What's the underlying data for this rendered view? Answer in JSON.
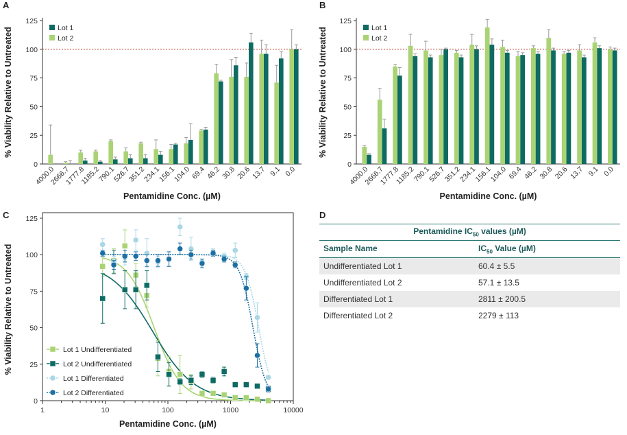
{
  "colors": {
    "lot1": "#0e6b63",
    "lot2": "#a9d374",
    "diff1": "#a9d7e6",
    "diff2": "#1c6fa3",
    "ref": "#c0392b",
    "err": "#999999",
    "axis": "#333333"
  },
  "panel_labels": [
    "A",
    "B",
    "C",
    "D"
  ],
  "chart_data": [
    {
      "type": "bar",
      "panel": "A",
      "ylabel": "% Viability Relative to Untreated",
      "xlabel": "Pentamidine Conc. (µM)",
      "ylim": [
        0,
        125
      ],
      "yticks": [
        0,
        25,
        50,
        75,
        100,
        125
      ],
      "reference_line": 100,
      "categories": [
        "4000.0",
        "2666.7",
        "1777.8",
        "1185.2",
        "790.1",
        "526.7",
        "351.2",
        "234.1",
        "156.1",
        "104.0",
        "69.4",
        "46.2",
        "30.8",
        "20.6",
        "13.7",
        "9.1",
        "0.0"
      ],
      "series": [
        {
          "name": "Lot 1",
          "values": [
            0,
            0,
            3,
            2,
            4,
            5,
            5,
            8,
            17,
            21,
            30,
            72,
            86,
            106,
            96,
            92,
            100
          ],
          "errors": [
            0,
            3,
            2,
            1,
            2,
            3,
            3,
            3,
            1,
            14,
            2,
            1,
            7,
            8,
            8,
            6,
            4
          ]
        },
        {
          "name": "Lot 2",
          "values": [
            8,
            1,
            10,
            11,
            20,
            11,
            18,
            13,
            13,
            18,
            29,
            79,
            76,
            76,
            96,
            71,
            100
          ],
          "errors": [
            26,
            1,
            2,
            1,
            1,
            3,
            1,
            8,
            4,
            5,
            1,
            8,
            15,
            12,
            12,
            15,
            17
          ]
        }
      ]
    },
    {
      "type": "bar",
      "panel": "B",
      "ylabel": "% Viability Relative to Untreated",
      "xlabel": "Pentamidine Conc. (µM)",
      "ylim": [
        0,
        125
      ],
      "yticks": [
        0,
        25,
        50,
        75,
        100,
        125
      ],
      "reference_line": 100,
      "categories": [
        "4000.0",
        "2666.7",
        "1777.8",
        "1185.2",
        "790.1",
        "526.7",
        "351.2",
        "234.1",
        "156.1",
        "104.0",
        "69.4",
        "46.2",
        "30.8",
        "20.6",
        "13.7",
        "9.1",
        "0.0"
      ],
      "series": [
        {
          "name": "Lot 1",
          "values": [
            8,
            31,
            77,
            94,
            93,
            100,
            93,
            100,
            104,
            97,
            95,
            96,
            99,
            97,
            93,
            101,
            99
          ],
          "errors": [
            1,
            8,
            7,
            2,
            2,
            1,
            2,
            3,
            5,
            2,
            2,
            2,
            2,
            2,
            2,
            2,
            2
          ]
        },
        {
          "name": "Lot 2",
          "values": [
            15,
            56,
            85,
            103,
            99,
            95,
            97,
            104,
            119,
            102,
            94,
            101,
            110,
            96,
            99,
            106,
            100
          ],
          "errors": [
            1,
            10,
            2,
            10,
            8,
            5,
            2,
            9,
            7,
            6,
            4,
            2,
            7,
            2,
            5,
            4,
            2
          ]
        }
      ]
    },
    {
      "type": "scatter",
      "panel": "C",
      "ylabel": "% Viability Relative to Untreated",
      "xlabel": "Pentamidine Conc. (µM)",
      "xscale": "log",
      "xlim": [
        1,
        10000
      ],
      "ylim": [
        0,
        125
      ],
      "xticks": [
        1,
        10,
        100,
        1000,
        10000
      ],
      "yticks": [
        0,
        25,
        50,
        75,
        100,
        125
      ],
      "x": [
        9.1,
        13.7,
        20.6,
        30.8,
        46.2,
        69.4,
        104.0,
        156.1,
        234.1,
        351.2,
        526.7,
        790.1,
        1185.2,
        1777.8,
        2666.7,
        4000.0
      ],
      "legend_position": "bottom-left",
      "series": [
        {
          "name": "Lot 1 Undifferentiated",
          "marker": "square",
          "dashed": false,
          "ic50": 60.4,
          "hill": 2.0,
          "top": 100,
          "bottom": 0,
          "values": [
            92,
            96,
            106,
            86,
            72,
            29,
            20,
            18,
            13,
            5,
            5,
            4,
            2,
            2,
            1,
            0
          ],
          "errors": [
            7,
            8,
            11,
            8,
            8,
            12,
            10,
            13,
            5,
            1,
            1,
            1,
            1,
            1,
            1,
            1
          ]
        },
        {
          "name": "Lot 2 Undifferentiated",
          "marker": "square",
          "dashed": false,
          "ic50": 57.1,
          "hill": 1.3,
          "top": 95,
          "bottom": 0,
          "values": [
            70,
            95,
            76,
            76,
            79,
            30,
            18,
            13,
            14,
            18,
            14,
            20,
            11,
            11,
            10,
            8
          ],
          "errors": [
            17,
            8,
            13,
            13,
            10,
            10,
            8,
            2,
            3,
            2,
            2,
            3,
            1,
            1,
            1,
            1
          ]
        },
        {
          "name": "Lot 1 Differentiated",
          "marker": "circle",
          "dashed": true,
          "ic50": 2811,
          "hill": 4.0,
          "top": 100,
          "bottom": 0,
          "values": [
            107,
            95,
            98,
            110,
            101,
            95,
            97,
            119,
            104,
            95,
            102,
            99,
            103,
            85,
            57,
            16
          ],
          "errors": [
            4,
            4,
            5,
            7,
            10,
            4,
            5,
            6,
            8,
            2,
            2,
            2,
            5,
            2,
            10,
            1
          ]
        },
        {
          "name": "Lot 2 Differentiated",
          "marker": "circle",
          "dashed": true,
          "ic50": 2279,
          "hill": 4.0,
          "top": 100,
          "bottom": 0,
          "values": [
            101,
            93,
            99,
            99,
            96,
            96,
            97,
            104,
            100,
            94,
            101,
            97,
            93,
            77,
            31,
            8
          ],
          "errors": [
            2,
            3,
            4,
            3,
            4,
            4,
            5,
            4,
            3,
            3,
            2,
            2,
            2,
            8,
            8,
            2
          ]
        }
      ]
    },
    {
      "type": "table",
      "panel": "D",
      "title_prefix": "Pentamidine IC",
      "title_sub": "50",
      "title_suffix": " values (µM)",
      "col1": "Sample Name",
      "col2_prefix": "IC",
      "col2_sub": "50",
      "col2_suffix": " Value (µM)",
      "rows": [
        {
          "name": "Undifferentiated Lot 1",
          "value": "60.4 ± 5.5"
        },
        {
          "name": "Undifferentiated Lot 2",
          "value": "57.1 ± 13.5"
        },
        {
          "name": "Differentiated Lot 1",
          "value": "2811 ± 200.5"
        },
        {
          "name": "Differentiated Lot 2",
          "value": "2279 ± 113"
        }
      ]
    }
  ]
}
